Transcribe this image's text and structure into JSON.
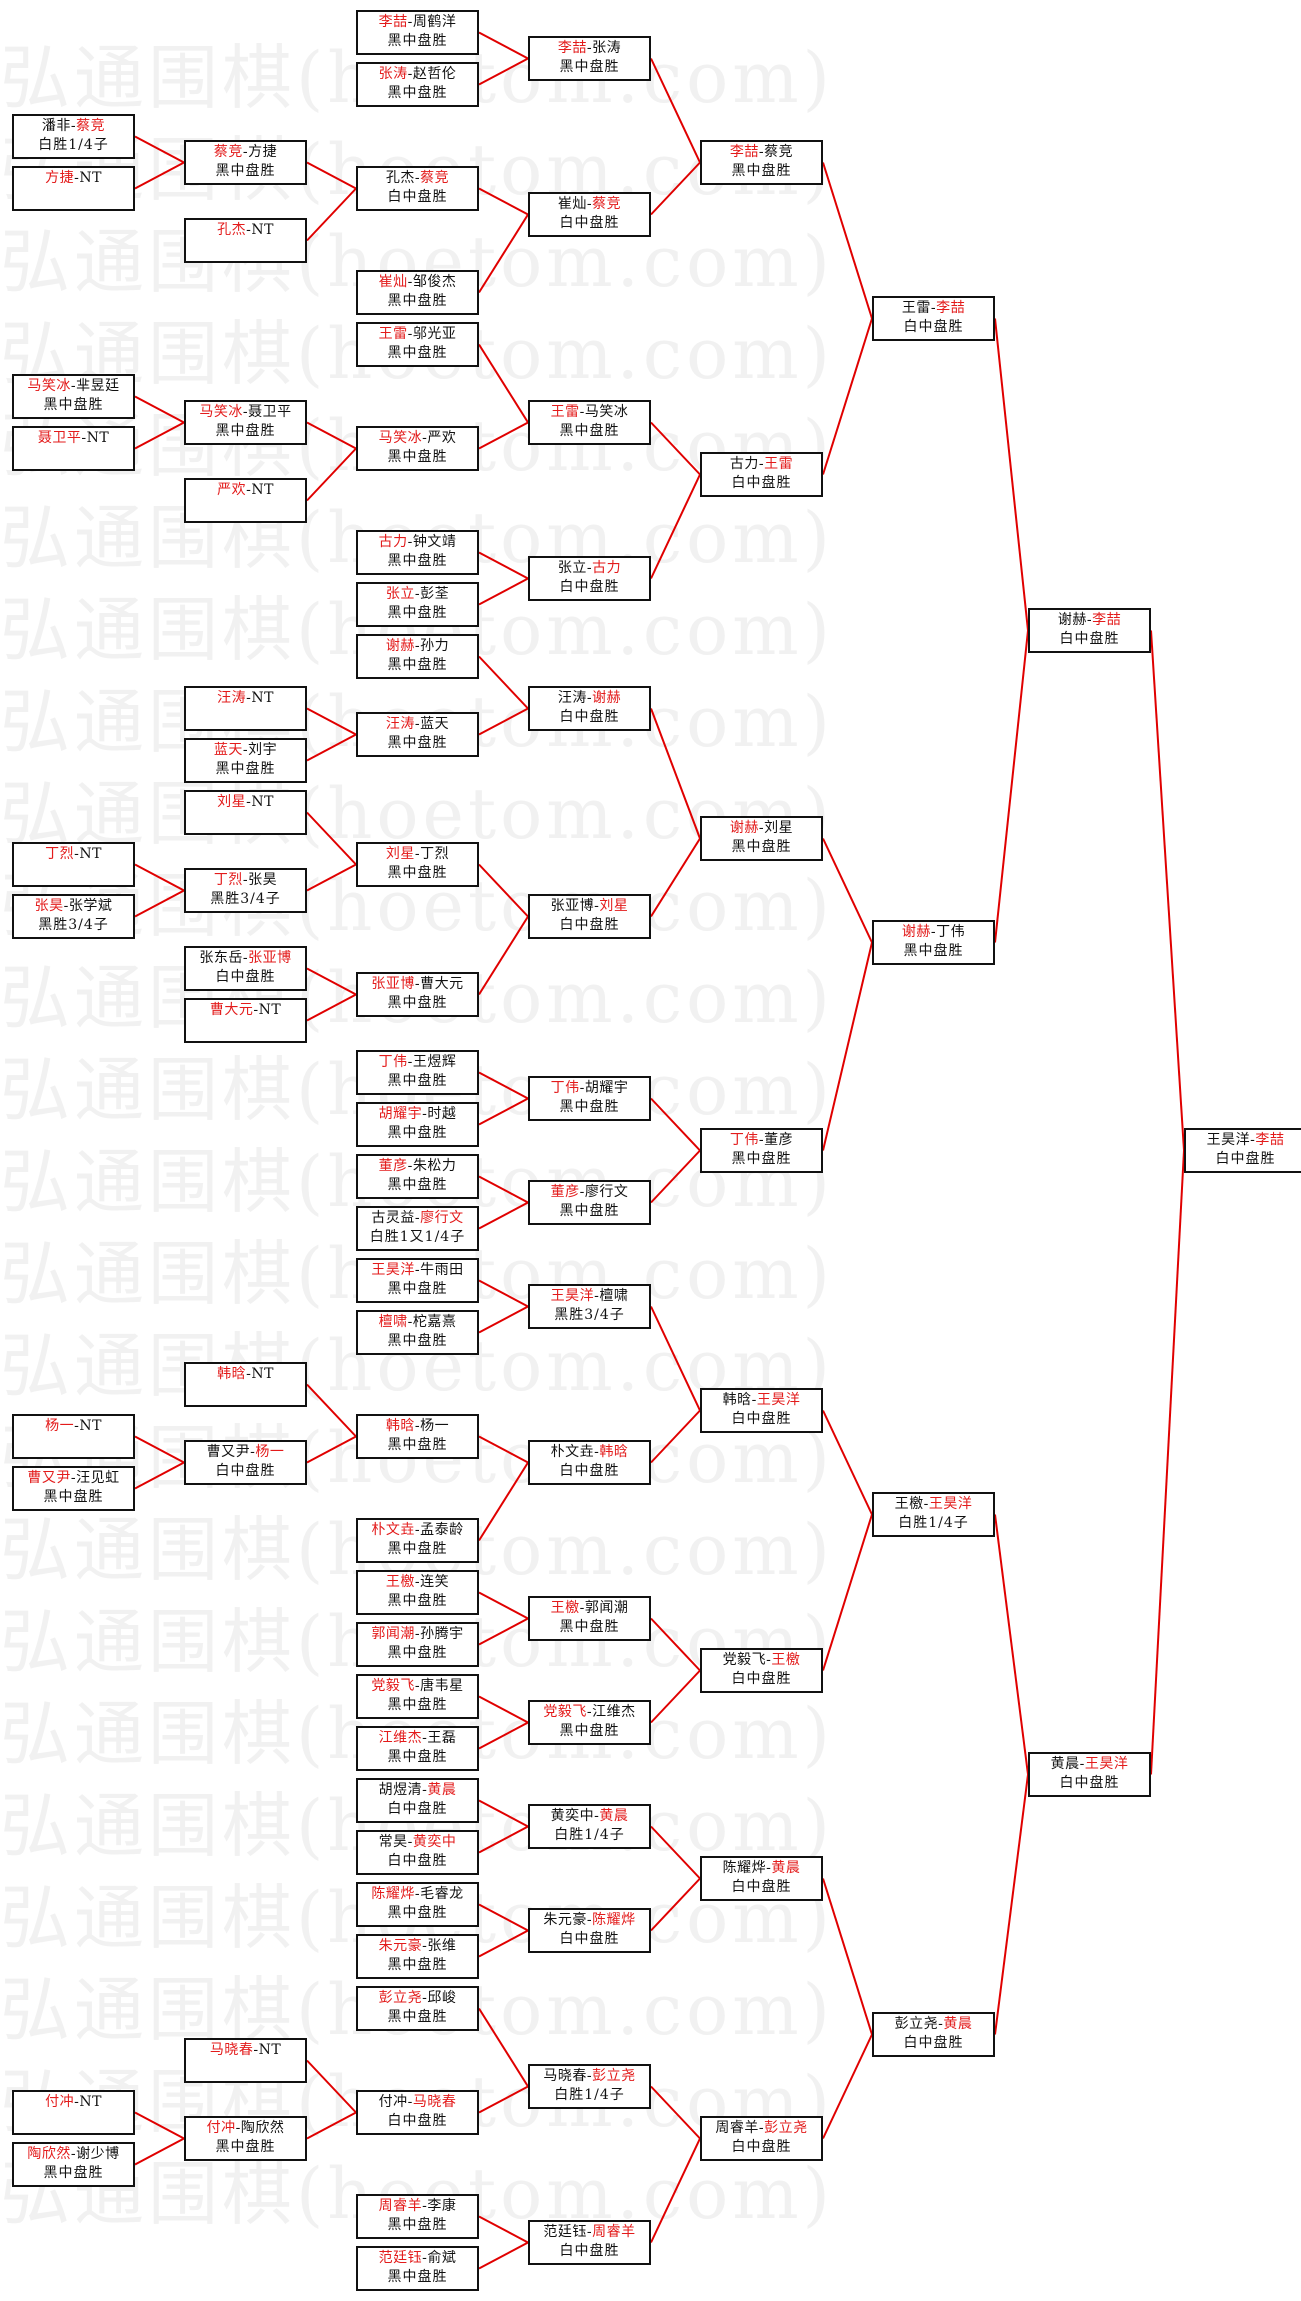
{
  "watermark": "弘通围棋(hoetom.com)",
  "separator": "-",
  "colors": {
    "winner": "#e31b1b",
    "connector": "#e00000",
    "border": "#111111"
  },
  "matches": [
    {
      "p1": "潘非",
      "p2": "蔡竞",
      "winner": 2,
      "result": "白胜1/4子"
    },
    {
      "p1": "方捷",
      "p2": "NT",
      "winner": 1,
      "result": ""
    },
    {
      "p1": "马笑冰",
      "p2": "芈昱廷",
      "winner": 1,
      "result": "黑中盘胜"
    },
    {
      "p1": "聂卫平",
      "p2": "NT",
      "winner": 1,
      "result": ""
    },
    {
      "p1": "丁烈",
      "p2": "NT",
      "winner": 1,
      "result": ""
    },
    {
      "p1": "张昊",
      "p2": "张学斌",
      "winner": 1,
      "result": "黑胜3/4子"
    },
    {
      "p1": "杨一",
      "p2": "NT",
      "winner": 1,
      "result": ""
    },
    {
      "p1": "曹又尹",
      "p2": "汪见虹",
      "winner": 1,
      "result": "黑中盘胜"
    },
    {
      "p1": "付冲",
      "p2": "NT",
      "winner": 1,
      "result": ""
    },
    {
      "p1": "陶欣然",
      "p2": "谢少博",
      "winner": 1,
      "result": "黑中盘胜"
    },
    {
      "p1": "蔡竞",
      "p2": "方捷",
      "winner": 1,
      "result": "黑中盘胜"
    },
    {
      "p1": "孔杰",
      "p2": "NT",
      "winner": 1,
      "result": ""
    },
    {
      "p1": "马笑冰",
      "p2": "聂卫平",
      "winner": 1,
      "result": "黑中盘胜"
    },
    {
      "p1": "严欢",
      "p2": "NT",
      "winner": 1,
      "result": ""
    },
    {
      "p1": "汪涛",
      "p2": "NT",
      "winner": 1,
      "result": ""
    },
    {
      "p1": "蓝天",
      "p2": "刘宇",
      "winner": 1,
      "result": "黑中盘胜"
    },
    {
      "p1": "刘星",
      "p2": "NT",
      "winner": 1,
      "result": ""
    },
    {
      "p1": "丁烈",
      "p2": "张昊",
      "winner": 1,
      "result": "黑胜3/4子"
    },
    {
      "p1": "张东岳",
      "p2": "张亚博",
      "winner": 2,
      "result": "白中盘胜"
    },
    {
      "p1": "曹大元",
      "p2": "NT",
      "winner": 1,
      "result": ""
    },
    {
      "p1": "韩晗",
      "p2": "NT",
      "winner": 1,
      "result": ""
    },
    {
      "p1": "曹又尹",
      "p2": "杨一",
      "winner": 2,
      "result": "白中盘胜"
    },
    {
      "p1": "马晓春",
      "p2": "NT",
      "winner": 1,
      "result": ""
    },
    {
      "p1": "付冲",
      "p2": "陶欣然",
      "winner": 1,
      "result": "黑中盘胜"
    },
    {
      "p1": "李喆",
      "p2": "周鹤洋",
      "winner": 1,
      "result": "黑中盘胜"
    },
    {
      "p1": "张涛",
      "p2": "赵哲伦",
      "winner": 1,
      "result": "黑中盘胜"
    },
    {
      "p1": "孔杰",
      "p2": "蔡竞",
      "winner": 2,
      "result": "白中盘胜"
    },
    {
      "p1": "崔灿",
      "p2": "邹俊杰",
      "winner": 1,
      "result": "黑中盘胜"
    },
    {
      "p1": "王雷",
      "p2": "邬光亚",
      "winner": 1,
      "result": "黑中盘胜"
    },
    {
      "p1": "马笑冰",
      "p2": "严欢",
      "winner": 1,
      "result": "黑中盘胜"
    },
    {
      "p1": "古力",
      "p2": "钟文靖",
      "winner": 1,
      "result": "黑中盘胜"
    },
    {
      "p1": "张立",
      "p2": "彭荃",
      "winner": 1,
      "result": "黑中盘胜"
    },
    {
      "p1": "谢赫",
      "p2": "孙力",
      "winner": 1,
      "result": "黑中盘胜"
    },
    {
      "p1": "汪涛",
      "p2": "蓝天",
      "winner": 1,
      "result": "黑中盘胜"
    },
    {
      "p1": "刘星",
      "p2": "丁烈",
      "winner": 1,
      "result": "黑中盘胜"
    },
    {
      "p1": "张亚博",
      "p2": "曹大元",
      "winner": 1,
      "result": "黑中盘胜"
    },
    {
      "p1": "丁伟",
      "p2": "王煜辉",
      "winner": 1,
      "result": "黑中盘胜"
    },
    {
      "p1": "胡耀宇",
      "p2": "时越",
      "winner": 1,
      "result": "黑中盘胜"
    },
    {
      "p1": "董彦",
      "p2": "朱松力",
      "winner": 1,
      "result": "黑中盘胜"
    },
    {
      "p1": "古灵益",
      "p2": "廖行文",
      "winner": 2,
      "result": "白胜1又1/4子"
    },
    {
      "p1": "王昊洋",
      "p2": "牛雨田",
      "winner": 1,
      "result": "黑中盘胜"
    },
    {
      "p1": "檀啸",
      "p2": "柁嘉熹",
      "winner": 1,
      "result": "黑中盘胜"
    },
    {
      "p1": "韩晗",
      "p2": "杨一",
      "winner": 1,
      "result": "黑中盘胜"
    },
    {
      "p1": "朴文垚",
      "p2": "孟泰龄",
      "winner": 1,
      "result": "黑中盘胜"
    },
    {
      "p1": "王檄",
      "p2": "连笑",
      "winner": 1,
      "result": "黑中盘胜"
    },
    {
      "p1": "郭闻潮",
      "p2": "孙腾宇",
      "winner": 1,
      "result": "黑中盘胜"
    },
    {
      "p1": "党毅飞",
      "p2": "唐韦星",
      "winner": 1,
      "result": "黑中盘胜"
    },
    {
      "p1": "江维杰",
      "p2": "王磊",
      "winner": 1,
      "result": "黑中盘胜"
    },
    {
      "p1": "胡煜清",
      "p2": "黄晨",
      "winner": 2,
      "result": "白中盘胜"
    },
    {
      "p1": "常昊",
      "p2": "黄奕中",
      "winner": 2,
      "result": "白中盘胜"
    },
    {
      "p1": "陈耀烨",
      "p2": "毛睿龙",
      "winner": 1,
      "result": "黑中盘胜"
    },
    {
      "p1": "朱元豪",
      "p2": "张维",
      "winner": 1,
      "result": "黑中盘胜"
    },
    {
      "p1": "彭立尧",
      "p2": "邱峻",
      "winner": 1,
      "result": "黑中盘胜"
    },
    {
      "p1": "付冲",
      "p2": "马晓春",
      "winner": 2,
      "result": "白中盘胜"
    },
    {
      "p1": "周睿羊",
      "p2": "李康",
      "winner": 1,
      "result": "黑中盘胜"
    },
    {
      "p1": "范廷钰",
      "p2": "俞斌",
      "winner": 1,
      "result": "黑中盘胜"
    },
    {
      "p1": "李喆",
      "p2": "张涛",
      "winner": 1,
      "result": "黑中盘胜"
    },
    {
      "p1": "崔灿",
      "p2": "蔡竞",
      "winner": 2,
      "result": "白中盘胜"
    },
    {
      "p1": "王雷",
      "p2": "马笑冰",
      "winner": 1,
      "result": "黑中盘胜"
    },
    {
      "p1": "张立",
      "p2": "古力",
      "winner": 2,
      "result": "白中盘胜"
    },
    {
      "p1": "汪涛",
      "p2": "谢赫",
      "winner": 2,
      "result": "白中盘胜"
    },
    {
      "p1": "张亚博",
      "p2": "刘星",
      "winner": 2,
      "result": "白中盘胜"
    },
    {
      "p1": "丁伟",
      "p2": "胡耀宇",
      "winner": 1,
      "result": "黑中盘胜"
    },
    {
      "p1": "董彦",
      "p2": "廖行文",
      "winner": 1,
      "result": "黑中盘胜"
    },
    {
      "p1": "王昊洋",
      "p2": "檀啸",
      "winner": 1,
      "result": "黑胜3/4子"
    },
    {
      "p1": "朴文垚",
      "p2": "韩晗",
      "winner": 2,
      "result": "白中盘胜"
    },
    {
      "p1": "王檄",
      "p2": "郭闻潮",
      "winner": 1,
      "result": "黑中盘胜"
    },
    {
      "p1": "党毅飞",
      "p2": "江维杰",
      "winner": 1,
      "result": "黑中盘胜"
    },
    {
      "p1": "黄奕中",
      "p2": "黄晨",
      "winner": 2,
      "result": "白胜1/4子"
    },
    {
      "p1": "朱元豪",
      "p2": "陈耀烨",
      "winner": 2,
      "result": "白中盘胜"
    },
    {
      "p1": "马晓春",
      "p2": "彭立尧",
      "winner": 2,
      "result": "白胜1/4子"
    },
    {
      "p1": "范廷钰",
      "p2": "周睿羊",
      "winner": 2,
      "result": "白中盘胜"
    },
    {
      "p1": "李喆",
      "p2": "蔡竞",
      "winner": 1,
      "result": "黑中盘胜"
    },
    {
      "p1": "古力",
      "p2": "王雷",
      "winner": 2,
      "result": "白中盘胜"
    },
    {
      "p1": "谢赫",
      "p2": "刘星",
      "winner": 1,
      "result": "黑中盘胜"
    },
    {
      "p1": "丁伟",
      "p2": "董彦",
      "winner": 1,
      "result": "黑中盘胜"
    },
    {
      "p1": "韩晗",
      "p2": "王昊洋",
      "winner": 2,
      "result": "白中盘胜"
    },
    {
      "p1": "党毅飞",
      "p2": "王檄",
      "winner": 2,
      "result": "白中盘胜"
    },
    {
      "p1": "陈耀烨",
      "p2": "黄晨",
      "winner": 2,
      "result": "白中盘胜"
    },
    {
      "p1": "周睿羊",
      "p2": "彭立尧",
      "winner": 2,
      "result": "白中盘胜"
    },
    {
      "p1": "王雷",
      "p2": "李喆",
      "winner": 2,
      "result": "白中盘胜"
    },
    {
      "p1": "谢赫",
      "p2": "丁伟",
      "winner": 1,
      "result": "黑中盘胜"
    },
    {
      "p1": "王檄",
      "p2": "王昊洋",
      "winner": 2,
      "result": "白胜1/4子"
    },
    {
      "p1": "彭立尧",
      "p2": "黄晨",
      "winner": 2,
      "result": "白中盘胜"
    },
    {
      "p1": "谢赫",
      "p2": "李喆",
      "winner": 2,
      "result": "白中盘胜"
    },
    {
      "p1": "黄晨",
      "p2": "王昊洋",
      "winner": 2,
      "result": "白中盘胜"
    },
    {
      "p1": "王昊洋",
      "p2": "李喆",
      "winner": 2,
      "result": "白中盘胜"
    }
  ]
}
